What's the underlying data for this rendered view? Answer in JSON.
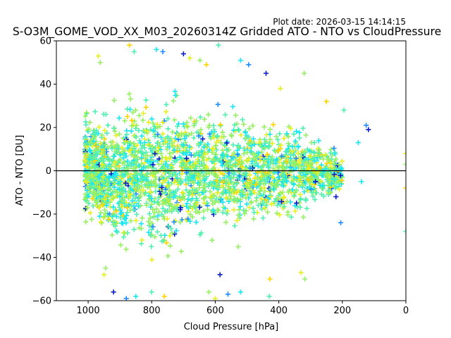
{
  "plot_date": "Plot date: 2026-03-15 14:14:15",
  "chart_data": {
    "type": "scatter",
    "title": "S-O3M_GOME_VOD_XX_M03_20260314Z Gridded ATO - NTO vs CloudPressure",
    "xlabel": "Cloud Pressure [hPa]",
    "ylabel": "ATO - NTO [DU]",
    "xlim": [
      1100,
      0
    ],
    "ylim": [
      -60,
      60
    ],
    "x_reversed": true,
    "x_ticks": [
      1000,
      800,
      600,
      400,
      200,
      0
    ],
    "y_ticks": [
      -60,
      -40,
      -20,
      0,
      20,
      40,
      60
    ],
    "grid": false,
    "marker": "+",
    "reference_line_y": 0,
    "color_scale": [
      "#0a1cc8",
      "#1e8cff",
      "#19e6f0",
      "#50f0b0",
      "#96f064",
      "#e6f020",
      "#ffd200"
    ],
    "cloud_envelope": [
      {
        "x": 1010,
        "ymin": -30,
        "ymax": 36
      },
      {
        "x": 950,
        "ymin": -44,
        "ymax": 40
      },
      {
        "x": 900,
        "ymin": -50,
        "ymax": 44
      },
      {
        "x": 850,
        "ymin": -52,
        "ymax": 46
      },
      {
        "x": 800,
        "ymin": -54,
        "ymax": 47
      },
      {
        "x": 700,
        "ymin": -50,
        "ymax": 46
      },
      {
        "x": 600,
        "ymin": -46,
        "ymax": 44
      },
      {
        "x": 500,
        "ymin": -40,
        "ymax": 38
      },
      {
        "x": 400,
        "ymin": -35,
        "ymax": 33
      },
      {
        "x": 300,
        "ymin": -27,
        "ymax": 26
      },
      {
        "x": 240,
        "ymin": -20,
        "ymax": 18
      },
      {
        "x": 200,
        "ymin": -14,
        "ymax": 10
      }
    ],
    "sample_points": [
      {
        "x": 968,
        "y": 53
      },
      {
        "x": 962,
        "y": 50
      },
      {
        "x": 870,
        "y": 58
      },
      {
        "x": 855,
        "y": 55
      },
      {
        "x": 785,
        "y": 56
      },
      {
        "x": 765,
        "y": 55
      },
      {
        "x": 700,
        "y": 54
      },
      {
        "x": 680,
        "y": 52
      },
      {
        "x": 648,
        "y": 51
      },
      {
        "x": 628,
        "y": 49
      },
      {
        "x": 590,
        "y": 58
      },
      {
        "x": 520,
        "y": 51
      },
      {
        "x": 495,
        "y": 49
      },
      {
        "x": 440,
        "y": 45
      },
      {
        "x": 395,
        "y": 38
      },
      {
        "x": 320,
        "y": 45
      },
      {
        "x": 250,
        "y": 32
      },
      {
        "x": 195,
        "y": 28
      },
      {
        "x": 150,
        "y": 13
      },
      {
        "x": 125,
        "y": 21
      },
      {
        "x": 118,
        "y": 19
      },
      {
        "x": 0,
        "y": 8
      },
      {
        "x": 0,
        "y": 3
      },
      {
        "x": 0,
        "y": -8
      },
      {
        "x": 0,
        "y": -28
      },
      {
        "x": 140,
        "y": -5
      },
      {
        "x": 205,
        "y": -24
      },
      {
        "x": 220,
        "y": -12
      },
      {
        "x": 330,
        "y": -47
      },
      {
        "x": 318,
        "y": -50
      },
      {
        "x": 428,
        "y": -50
      },
      {
        "x": 430,
        "y": -58
      },
      {
        "x": 520,
        "y": -56
      },
      {
        "x": 560,
        "y": -57
      },
      {
        "x": 585,
        "y": -48
      },
      {
        "x": 600,
        "y": -59
      },
      {
        "x": 620,
        "y": -56
      },
      {
        "x": 760,
        "y": -58
      },
      {
        "x": 800,
        "y": -56
      },
      {
        "x": 850,
        "y": -58
      },
      {
        "x": 880,
        "y": -59
      },
      {
        "x": 920,
        "y": -56
      },
      {
        "x": 950,
        "y": -48
      },
      {
        "x": 945,
        "y": -45
      }
    ]
  }
}
